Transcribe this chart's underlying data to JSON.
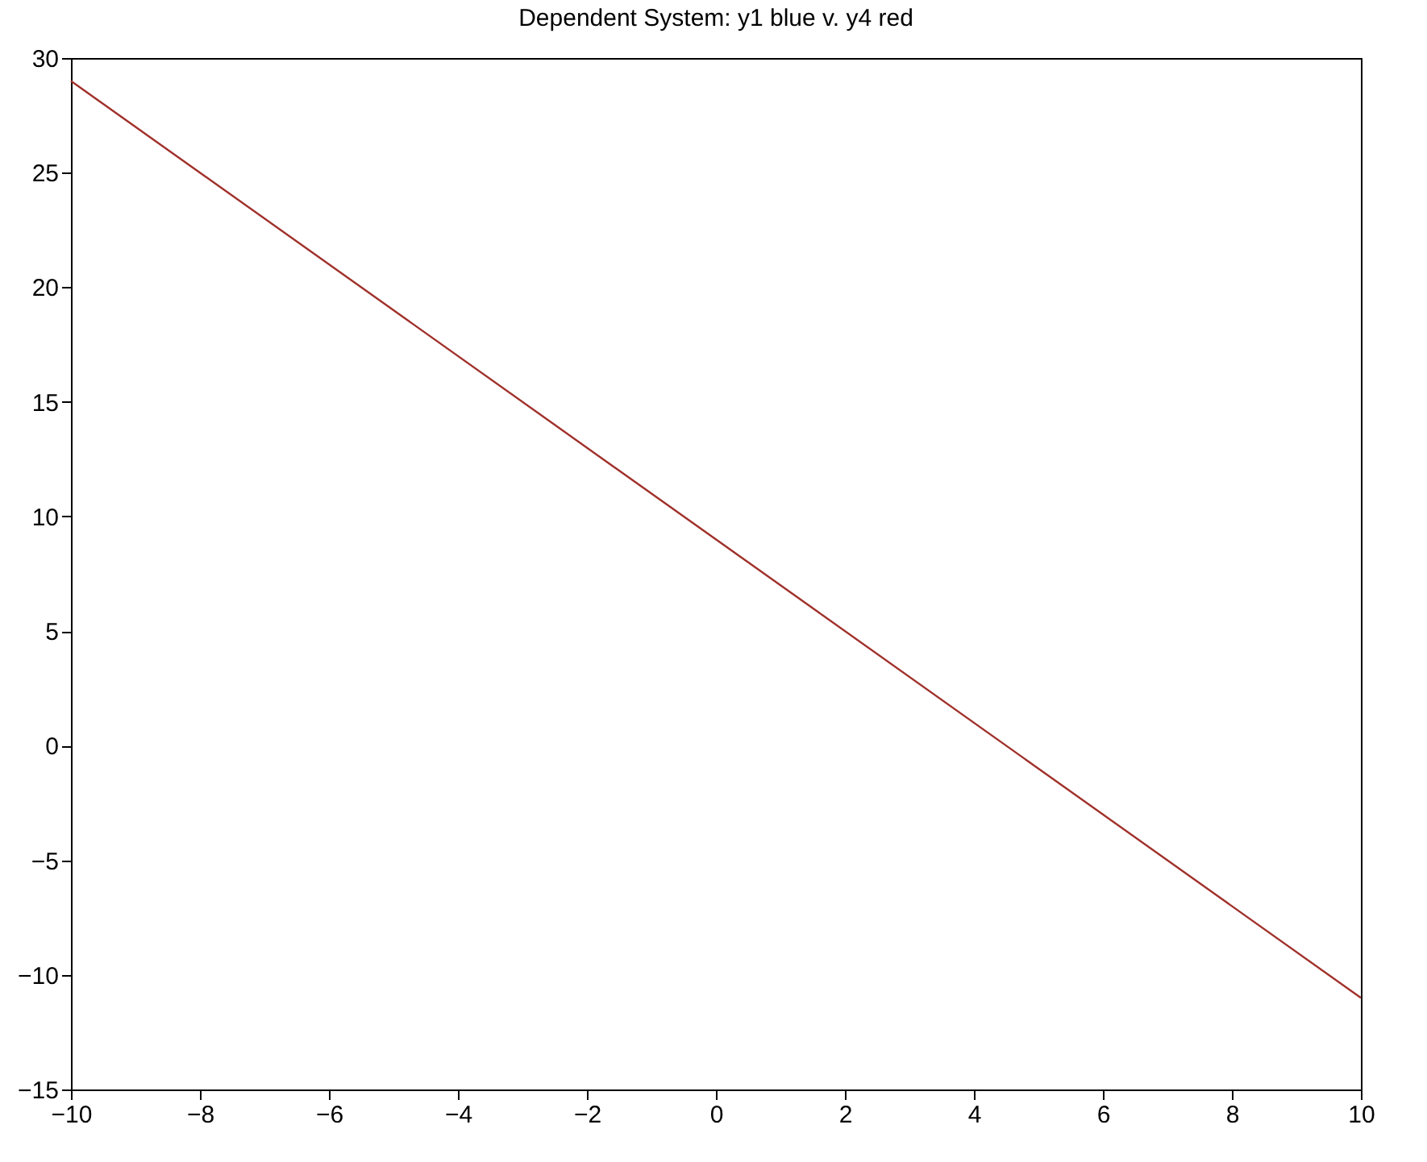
{
  "chart_data": {
    "type": "line",
    "title": "Dependent System: y1 blue v. y4 red",
    "x": [
      -10,
      10
    ],
    "series": [
      {
        "color": "#a0302a",
        "values": [
          29,
          -11
        ]
      }
    ],
    "xlim": [
      -10,
      10
    ],
    "xticks": [
      -10,
      -8,
      -6,
      -4,
      -2,
      0,
      2,
      4,
      6,
      8,
      10
    ],
    "ylim": [
      -15,
      30
    ],
    "yticks": [
      -15,
      -10,
      -5,
      0,
      5,
      10,
      15,
      20,
      25,
      30
    ],
    "grid": false,
    "legend": false,
    "marker": "none",
    "line_style": "solid"
  }
}
